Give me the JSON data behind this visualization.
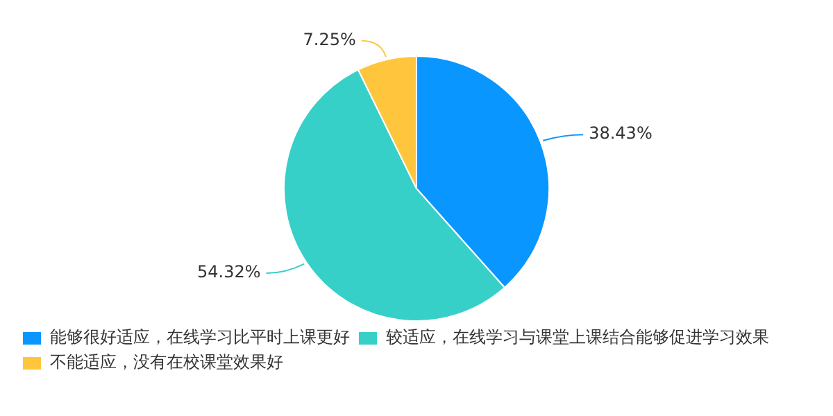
{
  "chart_data": {
    "type": "pie",
    "categories": [
      "能够很好适应，在线学习比平时上课更好",
      "较适应，在线学习与课堂上课结合能够促进学习效果",
      "不能适应，没有在校课堂效果好"
    ],
    "values": [
      38.43,
      54.32,
      7.25
    ],
    "colors": [
      "#0a96ff",
      "#36d0c8",
      "#ffc53d"
    ],
    "value_labels": [
      "38.43%",
      "54.32%",
      "7.25%"
    ],
    "legend": "bottom"
  }
}
